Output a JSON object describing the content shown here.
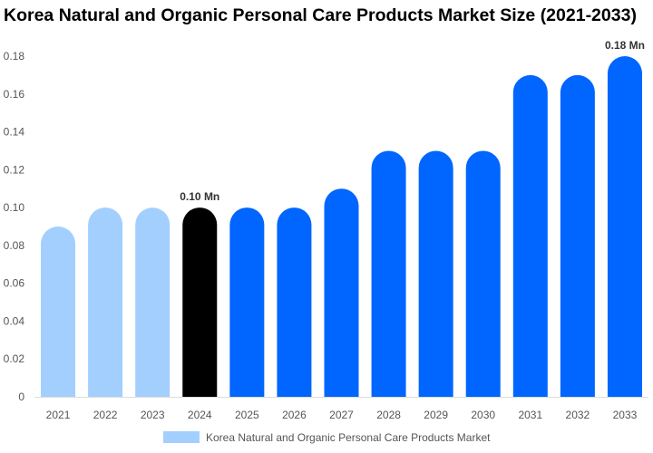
{
  "chart_data": {
    "type": "bar",
    "title": "Korea Natural and Organic Personal Care Products Market Size (2021-2033)",
    "categories": [
      "2021",
      "2022",
      "2023",
      "2024",
      "2025",
      "2026",
      "2027",
      "2028",
      "2029",
      "2030",
      "2031",
      "2032",
      "2033"
    ],
    "series": [
      {
        "name": "Korea Natural and Organic Personal Care Products Market",
        "values": [
          0.09,
          0.1,
          0.1,
          0.1,
          0.1,
          0.1,
          0.11,
          0.13,
          0.13,
          0.13,
          0.17,
          0.17,
          0.18
        ]
      }
    ],
    "ylim": [
      0,
      0.18
    ],
    "yticks": [
      "0",
      "0.02",
      "0.04",
      "0.06",
      "0.08",
      "0.10",
      "0.12",
      "0.14",
      "0.16",
      "0.18"
    ],
    "data_labels": [
      {
        "index": 3,
        "text": "0.10 Mn"
      },
      {
        "index": 12,
        "text": "0.18 Mn"
      }
    ],
    "colors": {
      "historic": "#a3cffe",
      "current": "#000000",
      "forecast": "#0066ff"
    },
    "grid": false,
    "legend_position": "bottom"
  }
}
